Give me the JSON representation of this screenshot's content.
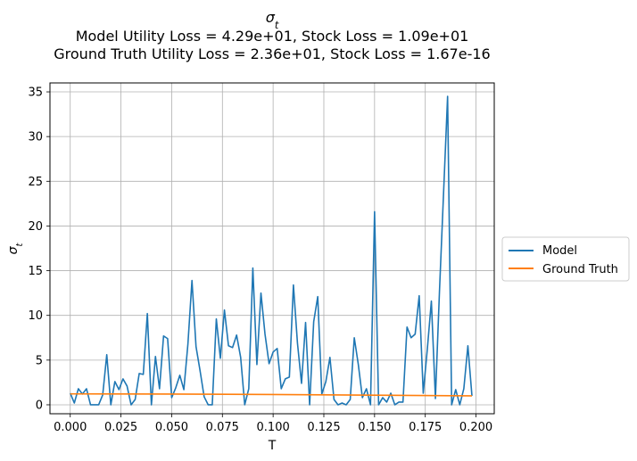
{
  "chart_data": {
    "type": "line",
    "title": "σ_t",
    "subtitle_lines": [
      "Model Utility Loss = 4.29e+01, Stock Loss = 1.09e+01",
      "Ground Truth Utility Loss = 2.36e+01, Stock Loss = 1.67e-16"
    ],
    "xlabel": "T",
    "ylabel": "σ_t",
    "xlim": [
      -0.01,
      0.209
    ],
    "ylim": [
      -1.0,
      36.0
    ],
    "xticks": [
      "0.000",
      "0.025",
      "0.050",
      "0.075",
      "0.100",
      "0.125",
      "0.150",
      "0.175",
      "0.200"
    ],
    "yticks": [
      "0",
      "5",
      "10",
      "15",
      "20",
      "25",
      "30",
      "35"
    ],
    "grid": true,
    "legend_position": "outside-right",
    "series": [
      {
        "name": "Model",
        "color": "#1f77b4",
        "x": [
          0.0,
          0.002,
          0.004,
          0.006,
          0.008,
          0.01,
          0.012,
          0.014,
          0.016,
          0.018,
          0.02,
          0.022,
          0.024,
          0.026,
          0.028,
          0.03,
          0.032,
          0.034,
          0.036,
          0.038,
          0.04,
          0.042,
          0.044,
          0.046,
          0.048,
          0.05,
          0.052,
          0.054,
          0.056,
          0.058,
          0.06,
          0.062,
          0.064,
          0.066,
          0.068,
          0.07,
          0.072,
          0.074,
          0.076,
          0.078,
          0.08,
          0.082,
          0.084,
          0.086,
          0.088,
          0.09,
          0.092,
          0.094,
          0.096,
          0.098,
          0.1,
          0.102,
          0.104,
          0.106,
          0.108,
          0.11,
          0.112,
          0.114,
          0.116,
          0.118,
          0.12,
          0.122,
          0.124,
          0.126,
          0.128,
          0.13,
          0.132,
          0.134,
          0.136,
          0.138,
          0.14,
          0.142,
          0.144,
          0.146,
          0.148,
          0.15,
          0.152,
          0.154,
          0.156,
          0.158,
          0.16,
          0.162,
          0.164,
          0.166,
          0.168,
          0.17,
          0.172,
          0.174,
          0.176,
          0.178,
          0.18,
          0.182,
          0.184,
          0.186,
          0.188,
          0.19,
          0.192,
          0.194,
          0.196,
          0.198
        ],
        "y": [
          1.3,
          0.2,
          1.8,
          1.2,
          1.8,
          0.0,
          0.0,
          0.0,
          1.1,
          5.6,
          0.0,
          2.6,
          1.7,
          2.9,
          2.1,
          0.0,
          0.6,
          3.5,
          3.4,
          10.2,
          0.0,
          5.4,
          1.8,
          7.7,
          7.4,
          0.8,
          1.9,
          3.3,
          1.7,
          6.8,
          13.9,
          6.5,
          3.8,
          0.9,
          0.0,
          0.0,
          9.6,
          5.2,
          10.6,
          6.6,
          6.4,
          7.8,
          5.3,
          0.0,
          1.8,
          15.3,
          4.5,
          12.5,
          7.9,
          4.6,
          5.9,
          6.3,
          1.8,
          2.9,
          3.1,
          13.4,
          6.9,
          2.4,
          9.2,
          0.0,
          9.3,
          12.1,
          1.2,
          2.6,
          5.3,
          0.6,
          0.0,
          0.2,
          0.0,
          0.6,
          7.5,
          4.5,
          0.8,
          1.8,
          0.0,
          21.6,
          0.0,
          0.8,
          0.3,
          1.3,
          0.0,
          0.3,
          0.3,
          8.7,
          7.5,
          7.9,
          12.2,
          1.3,
          6.2,
          11.6,
          0.7,
          12.7,
          23.6,
          34.5,
          0.0,
          1.7,
          0.0,
          1.8,
          6.6,
          1.0
        ]
      },
      {
        "name": "Ground Truth",
        "color": "#ff7f0e",
        "x": [
          0.0,
          0.05,
          0.1,
          0.15,
          0.198
        ],
        "y": [
          1.22,
          1.2,
          1.15,
          1.08,
          1.0
        ]
      }
    ]
  }
}
